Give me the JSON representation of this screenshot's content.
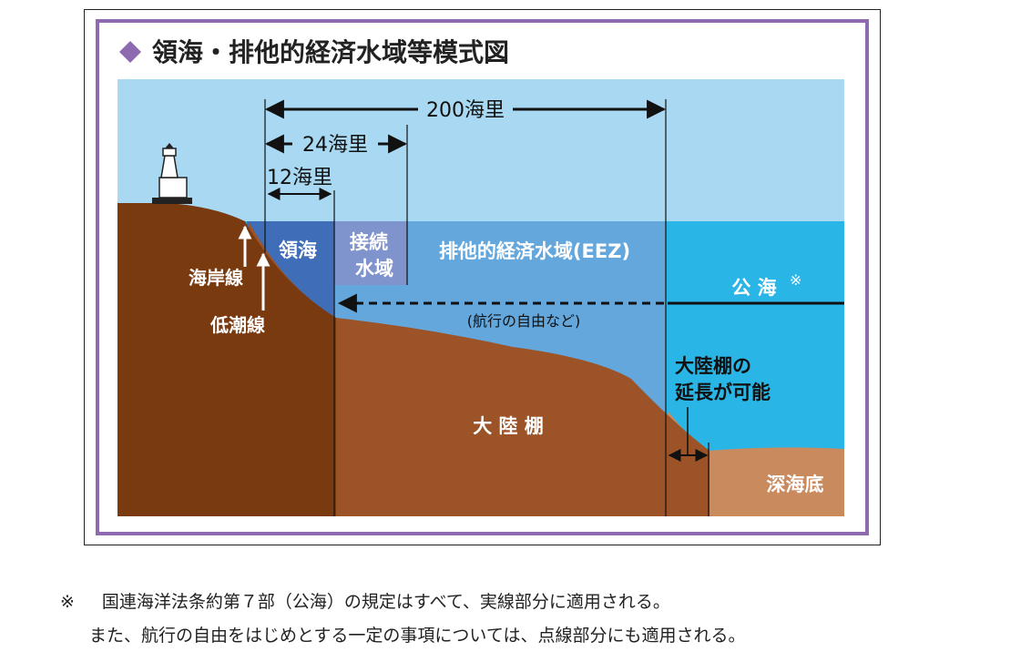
{
  "title": "領海・排他的経済水域等模式図",
  "dimensions": {
    "nm200": "200海里",
    "nm24": "24海里",
    "nm12": "12海里"
  },
  "zones": {
    "territorial_sea": "領海",
    "contiguous_zone_line1": "接続",
    "contiguous_zone_line2": "水域",
    "eez": "排他的経済水域(EEZ)",
    "high_seas": "公 海",
    "high_seas_mark": "※",
    "navigation_note": "(航行の自由など)"
  },
  "land": {
    "coastline": "海岸線",
    "low_water_line": "低潮線",
    "continental_shelf": "大 陸 棚",
    "extension_line1": "大陸棚の",
    "extension_line2": "延長が可能",
    "deep_seabed": "深海底"
  },
  "colors": {
    "frame_purple": "#8e6bb0",
    "sky": "#a9d9f2",
    "sea": "#29b6e7",
    "eez_sea": "#64a7dc",
    "territorial_sea": "#3f6db8",
    "contiguous_box": "#7f93cc",
    "land": "#7a3a10",
    "shelf": "#9b5327",
    "deep_seabed": "#c98a5e"
  },
  "footnote": {
    "mark": "※",
    "line1": "国連海洋法条約第７部（公海）の規定はすべて、実線部分に適用される。",
    "line2": "また、航行の自由をはじめとする一定の事項については、点線部分にも適用される。"
  }
}
